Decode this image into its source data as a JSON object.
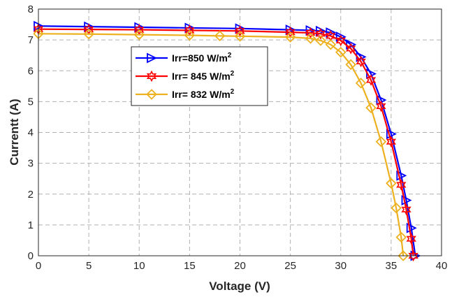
{
  "chart_data": {
    "type": "line",
    "title": "",
    "xlabel": "Voltage (V)",
    "ylabel": "Currentt (A)",
    "xlim": [
      0,
      40
    ],
    "ylim": [
      0,
      8
    ],
    "xticks": [
      0,
      5,
      10,
      15,
      20,
      25,
      30,
      35,
      40
    ],
    "yticks": [
      0,
      1,
      2,
      3,
      4,
      5,
      6,
      7,
      8
    ],
    "grid": true,
    "legend_position": "upper-left",
    "series": [
      {
        "name": "Irr=850 W/m",
        "superscript": "2",
        "color": "#0000ff",
        "marker": "triangle-right",
        "x": [
          0,
          5,
          10,
          15,
          20,
          25,
          27,
          28,
          29,
          30,
          31,
          32,
          33,
          34,
          35,
          36,
          36.5,
          37,
          37.4
        ],
        "y": [
          7.45,
          7.43,
          7.41,
          7.39,
          7.37,
          7.33,
          7.31,
          7.29,
          7.24,
          7.1,
          6.85,
          6.45,
          5.9,
          5.05,
          3.95,
          2.6,
          1.8,
          0.9,
          0.0
        ]
      },
      {
        "name": "Irr= 845 W/m",
        "superscript": "2",
        "color": "#ff0000",
        "marker": "hexagram",
        "x": [
          0,
          5,
          10,
          15,
          20,
          25,
          27,
          28,
          29,
          30,
          31,
          32,
          33,
          34,
          35,
          36,
          36.5,
          37,
          37.2
        ],
        "y": [
          7.35,
          7.34,
          7.33,
          7.31,
          7.29,
          7.25,
          7.23,
          7.2,
          7.13,
          6.98,
          6.72,
          6.3,
          5.7,
          4.85,
          3.7,
          2.3,
          1.5,
          0.55,
          0.0
        ]
      },
      {
        "name": "Irr= 832 W/m",
        "superscript": "2",
        "color": "#edb120",
        "marker": "diamond",
        "x": [
          0,
          5,
          10,
          15,
          18,
          20,
          25,
          27,
          28,
          29,
          30,
          31,
          32,
          33,
          34,
          35,
          35.5,
          36,
          36.2
        ],
        "y": [
          7.2,
          7.19,
          7.17,
          7.15,
          7.13,
          7.12,
          7.09,
          7.05,
          6.98,
          6.85,
          6.6,
          6.2,
          5.6,
          4.8,
          3.7,
          2.35,
          1.55,
          0.6,
          0.0
        ]
      }
    ]
  }
}
